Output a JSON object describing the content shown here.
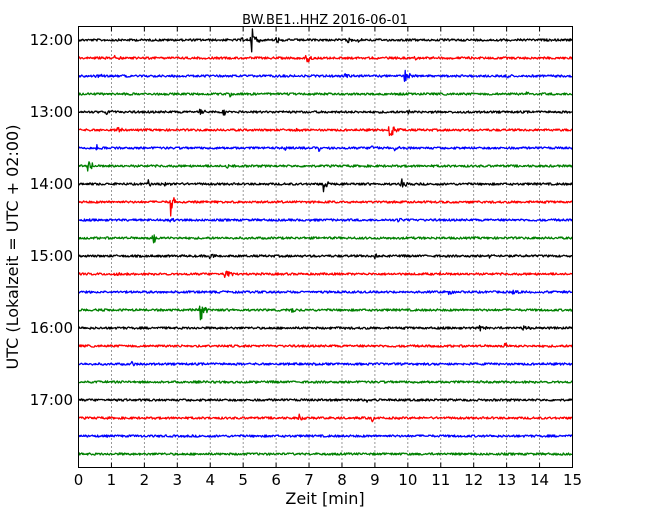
{
  "chart_data": {
    "type": "line",
    "title": "BW.BE1..HHZ 2016-06-01",
    "xlabel": "Zeit  [min]",
    "ylabel": "UTC (Lokalzeit = UTC + 02:00)",
    "xlim": [
      0,
      15
    ],
    "x_ticks": [
      "0",
      "1",
      "2",
      "3",
      "4",
      "5",
      "6",
      "7",
      "8",
      "9",
      "10",
      "11",
      "12",
      "13",
      "14",
      "15"
    ],
    "y_ticks": [
      "12:00",
      "13:00",
      "14:00",
      "15:00",
      "16:00",
      "17:00"
    ],
    "grid": "vertical dotted",
    "trace_interval_min": 15,
    "trace_colors": [
      "#000000",
      "#ff0000",
      "#0000ff",
      "#008000"
    ],
    "series": [
      {
        "start": "12:00",
        "events": [
          {
            "t": 5.25,
            "amp": 1.0
          },
          {
            "t": 4.9,
            "amp": 0.25
          },
          {
            "t": 6.0,
            "amp": 0.25
          },
          {
            "t": 8.2,
            "amp": 0.2
          },
          {
            "t": 8.5,
            "amp": 0.2
          },
          {
            "t": 13.4,
            "amp": 0.15
          }
        ]
      },
      {
        "start": "12:15",
        "events": [
          {
            "t": 6.9,
            "amp": 0.6
          },
          {
            "t": 1.1,
            "amp": 0.15
          },
          {
            "t": 2.4,
            "amp": 0.12
          },
          {
            "t": 10.2,
            "amp": 0.1
          }
        ]
      },
      {
        "start": "12:30",
        "events": [
          {
            "t": 9.9,
            "amp": 0.5
          },
          {
            "t": 0.55,
            "amp": 0.25
          },
          {
            "t": 8.1,
            "amp": 0.2
          },
          {
            "t": 13.0,
            "amp": 0.2
          }
        ]
      },
      {
        "start": "12:45",
        "events": [
          {
            "t": 4.6,
            "amp": 0.15
          },
          {
            "t": 13.6,
            "amp": 0.12
          }
        ]
      },
      {
        "start": "13:00",
        "events": [
          {
            "t": 0.85,
            "amp": 0.25
          },
          {
            "t": 3.7,
            "amp": 0.2
          },
          {
            "t": 4.4,
            "amp": 0.2
          },
          {
            "t": 10.0,
            "amp": 0.15
          }
        ]
      },
      {
        "start": "13:15",
        "events": [
          {
            "t": 9.45,
            "amp": 1.0
          },
          {
            "t": 1.2,
            "amp": 0.2
          },
          {
            "t": 6.6,
            "amp": 0.15
          }
        ]
      },
      {
        "start": "13:30",
        "events": [
          {
            "t": 0.55,
            "amp": 0.3
          },
          {
            "t": 6.3,
            "amp": 0.25
          },
          {
            "t": 7.3,
            "amp": 0.25
          },
          {
            "t": 8.9,
            "amp": 0.2
          },
          {
            "t": 9.6,
            "amp": 0.2
          }
        ]
      },
      {
        "start": "13:45",
        "events": [
          {
            "t": 0.3,
            "amp": 0.6
          },
          {
            "t": 4.5,
            "amp": 0.18
          }
        ]
      },
      {
        "start": "14:00",
        "events": [
          {
            "t": 7.45,
            "amp": 0.65
          },
          {
            "t": 2.1,
            "amp": 0.25
          },
          {
            "t": 2.6,
            "amp": 0.25
          },
          {
            "t": 9.8,
            "amp": 0.35
          }
        ]
      },
      {
        "start": "14:15",
        "events": [
          {
            "t": 2.8,
            "amp": 0.8
          }
        ]
      },
      {
        "start": "14:30",
        "events": [
          {
            "t": 2.75,
            "amp": 0.2
          },
          {
            "t": 9.7,
            "amp": 0.15
          }
        ]
      },
      {
        "start": "14:45",
        "events": [
          {
            "t": 2.25,
            "amp": 0.45
          }
        ]
      },
      {
        "start": "15:00",
        "events": [
          {
            "t": 12.5,
            "amp": 0.3
          },
          {
            "t": 4.0,
            "amp": 0.2
          },
          {
            "t": 9.0,
            "amp": 0.15
          }
        ]
      },
      {
        "start": "15:15",
        "events": [
          {
            "t": 4.45,
            "amp": 0.55
          },
          {
            "t": 1.05,
            "amp": 0.15
          },
          {
            "t": 11.0,
            "amp": 0.12
          }
        ]
      },
      {
        "start": "15:30",
        "events": [
          {
            "t": 11.25,
            "amp": 0.25
          },
          {
            "t": 13.2,
            "amp": 0.15
          }
        ]
      },
      {
        "start": "15:45",
        "events": [
          {
            "t": 3.7,
            "amp": 0.9
          },
          {
            "t": 6.5,
            "amp": 0.2
          }
        ]
      },
      {
        "start": "16:00",
        "events": [
          {
            "t": 12.2,
            "amp": 0.25
          },
          {
            "t": 13.5,
            "amp": 0.2
          },
          {
            "t": 7.6,
            "amp": 0.12
          }
        ]
      },
      {
        "start": "16:15",
        "events": [
          {
            "t": 12.95,
            "amp": 0.3
          }
        ]
      },
      {
        "start": "16:30",
        "events": [
          {
            "t": 1.6,
            "amp": 0.18
          }
        ]
      },
      {
        "start": "16:45",
        "events": []
      },
      {
        "start": "17:00",
        "events": [
          {
            "t": 8.75,
            "amp": 0.15
          }
        ]
      },
      {
        "start": "17:15",
        "events": [
          {
            "t": 6.7,
            "amp": 0.3
          },
          {
            "t": 8.9,
            "amp": 0.2
          }
        ]
      },
      {
        "start": "17:30",
        "events": []
      },
      {
        "start": "17:45",
        "events": []
      }
    ]
  }
}
